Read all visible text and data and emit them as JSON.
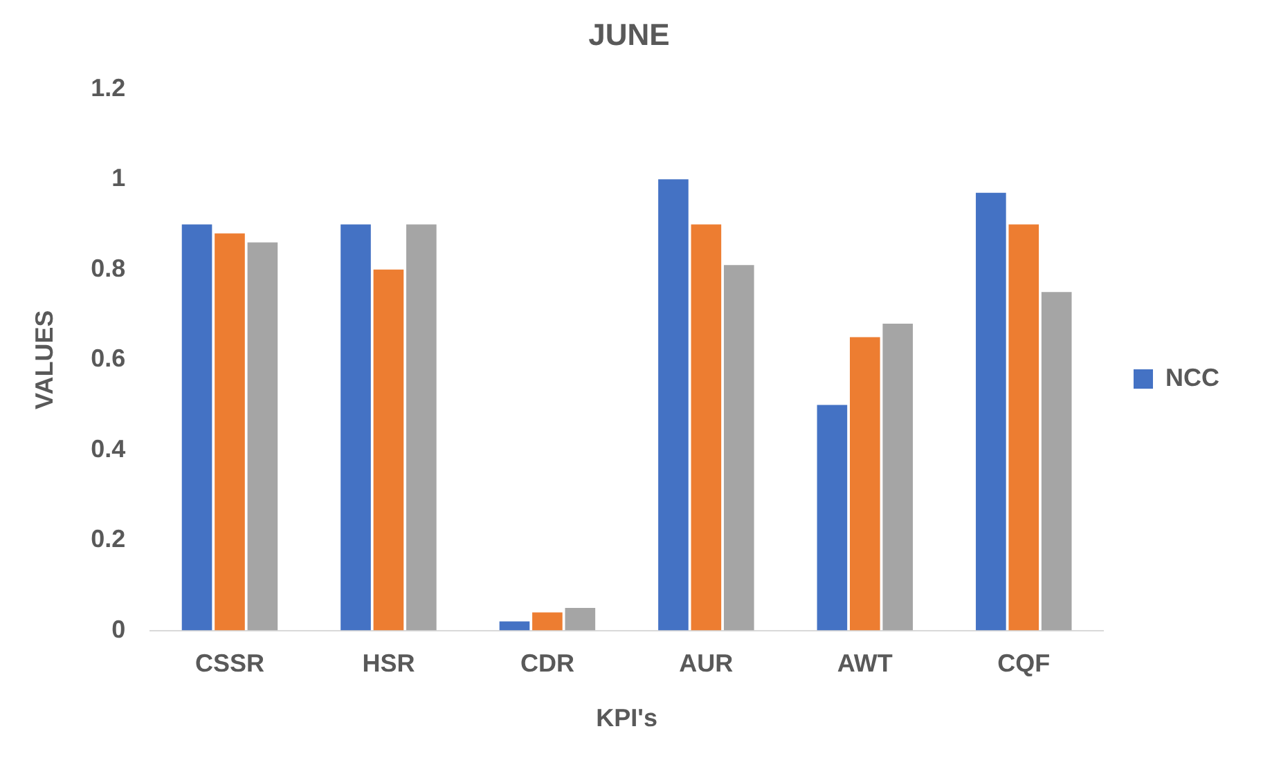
{
  "chart_data": {
    "type": "bar",
    "title": "JUNE",
    "xlabel": "KPI's",
    "ylabel": "VALUES",
    "categories": [
      "CSSR",
      "HSR",
      "CDR",
      "AUR",
      "AWT",
      "CQF"
    ],
    "series": [
      {
        "name": "NCC",
        "color": "#4472c4",
        "values": [
          0.9,
          0.9,
          0.02,
          1.0,
          0.5,
          0.97
        ]
      },
      {
        "color": "#ed7d31",
        "values": [
          0.88,
          0.8,
          0.04,
          0.9,
          0.65,
          0.9
        ]
      },
      {
        "color": "#a5a5a5",
        "values": [
          0.86,
          0.9,
          0.05,
          0.81,
          0.68,
          0.75
        ]
      }
    ],
    "ylim": [
      0,
      1.2
    ],
    "yticks": [
      0,
      0.2,
      0.4,
      0.6,
      0.8,
      1,
      1.2
    ],
    "grid": false,
    "legend": "right"
  }
}
